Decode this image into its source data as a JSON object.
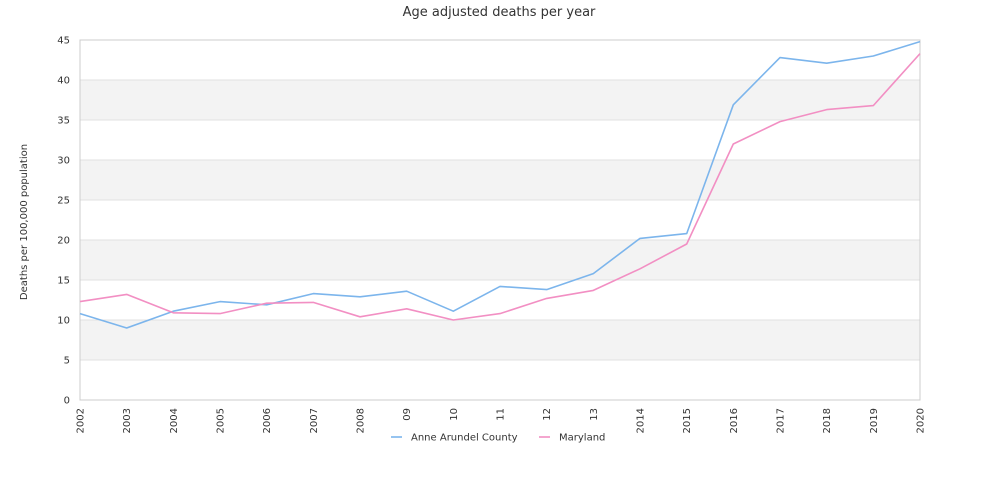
{
  "chart_data": {
    "type": "line",
    "title": "Age adjusted deaths per year",
    "xlabel": "",
    "ylabel": "Deaths per 100,000 population",
    "ylim": [
      0,
      45
    ],
    "yticks": [
      0,
      5,
      10,
      15,
      20,
      25,
      30,
      35,
      40,
      45
    ],
    "categories": [
      "2002",
      "2003",
      "2004",
      "2005",
      "2006",
      "2007",
      "2008",
      "09",
      "10",
      "11",
      "12",
      "13",
      "2014",
      "2015",
      "2016",
      "2017",
      "2018",
      "2019",
      "2020"
    ],
    "series": [
      {
        "name": "Anne Arundel County",
        "color": "#7cb5ec",
        "values": [
          10.8,
          9.0,
          11.1,
          12.3,
          11.9,
          13.3,
          12.9,
          13.6,
          11.1,
          14.2,
          13.8,
          15.8,
          20.2,
          20.8,
          36.9,
          42.8,
          42.1,
          43.0,
          44.8
        ]
      },
      {
        "name": "Maryland",
        "color": "#f28fc3",
        "values": [
          12.3,
          13.2,
          10.9,
          10.8,
          12.1,
          12.2,
          10.4,
          11.4,
          10.0,
          10.8,
          12.7,
          13.7,
          16.4,
          19.5,
          32.0,
          34.8,
          36.3,
          36.8,
          43.3
        ]
      }
    ],
    "grid": true,
    "legend_position": "bottom-center"
  }
}
